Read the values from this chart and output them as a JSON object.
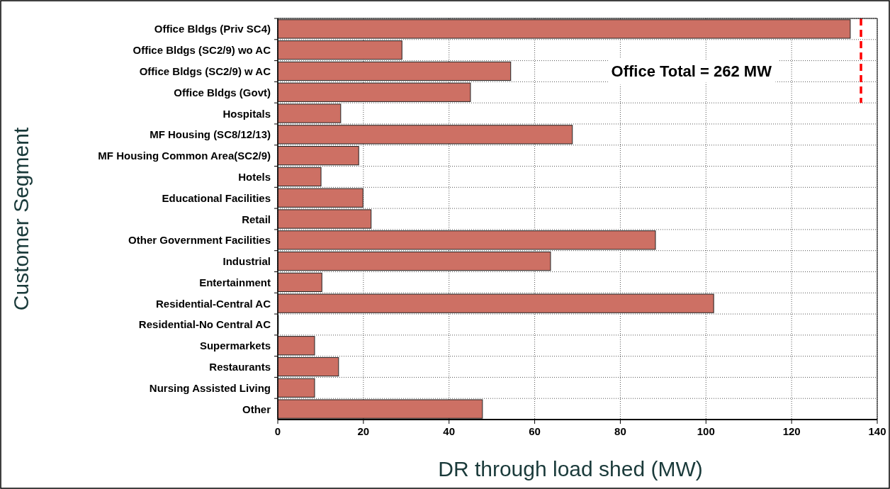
{
  "chart_data": {
    "type": "bar",
    "orientation": "horizontal",
    "xlabel": "DR through load shed (MW)",
    "ylabel": "Customer Segment",
    "categories": [
      "Office Bldgs (Priv SC4)",
      "Office Bldgs (SC2/9) wo AC",
      "Office Bldgs (SC2/9) w AC",
      "Office Bldgs (Govt)",
      "Hospitals",
      "MF Housing (SC8/12/13)",
      "MF Housing Common Area(SC2/9)",
      "Hotels",
      "Educational Facilities",
      "Retail",
      "Other Government Facilities",
      "Industrial",
      "Entertainment",
      "Residential-Central AC",
      "Residential-No Central AC",
      "Supermarkets",
      "Restaurants",
      "Nursing Assisted Living",
      "Other"
    ],
    "values": [
      133.7,
      29,
      54.4,
      45,
      14.7,
      68.8,
      18.9,
      10.1,
      19.9,
      21.8,
      88.2,
      63.7,
      10.3,
      101.8,
      0,
      8.6,
      14.2,
      8.6,
      47.8
    ],
    "color": "#cd7064",
    "xlim": [
      0,
      140
    ],
    "xticks": [
      0,
      20,
      40,
      60,
      80,
      100,
      120,
      140
    ],
    "grid": true,
    "annotations": [
      "Office Total = 262 MW"
    ],
    "ref_lines": [
      {
        "axis": "x",
        "value": 136.2,
        "color": "#ff0000",
        "line_style": "dashed"
      }
    ]
  }
}
